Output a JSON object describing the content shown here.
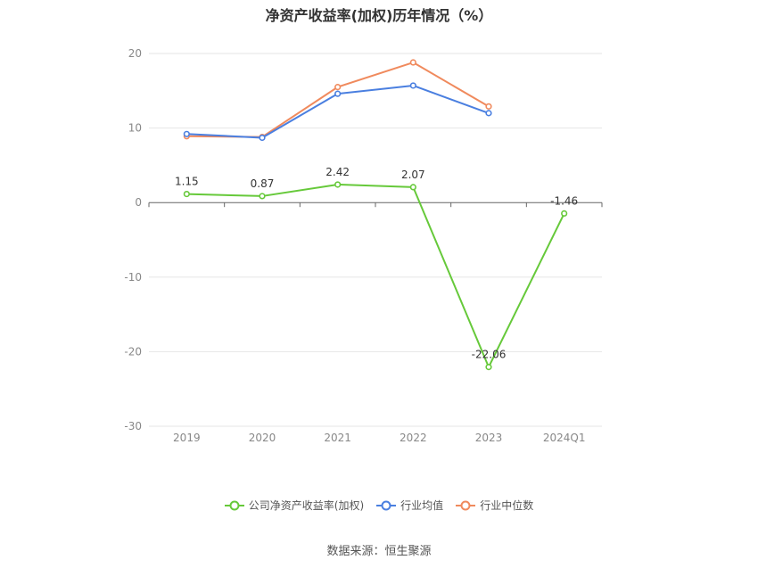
{
  "chart_data": {
    "type": "line",
    "title": "净资产收益率(加权)历年情况（%）",
    "categories": [
      "2019",
      "2020",
      "2021",
      "2022",
      "2023",
      "2024Q1"
    ],
    "ylim": [
      -30,
      20
    ],
    "yticks": [
      20,
      10,
      0,
      -10,
      -20,
      -30
    ],
    "grid": true,
    "legend_position": "bottom",
    "series": [
      {
        "name": "公司净资产收益率(加权)",
        "color": "#66c93a",
        "values": [
          1.15,
          0.87,
          2.42,
          2.07,
          -22.06,
          -1.46
        ],
        "labels": [
          "1.15",
          "0.87",
          "2.42",
          "2.07",
          "-22.06",
          "-1.46"
        ]
      },
      {
        "name": "行业均值",
        "color": "#4a7fe0",
        "values": [
          9.2,
          8.7,
          14.6,
          15.7,
          12.0,
          null
        ]
      },
      {
        "name": "行业中位数",
        "color": "#f08a5d",
        "values": [
          8.9,
          8.8,
          15.5,
          18.8,
          12.9,
          null
        ]
      }
    ]
  },
  "source": "数据来源：恒生聚源"
}
